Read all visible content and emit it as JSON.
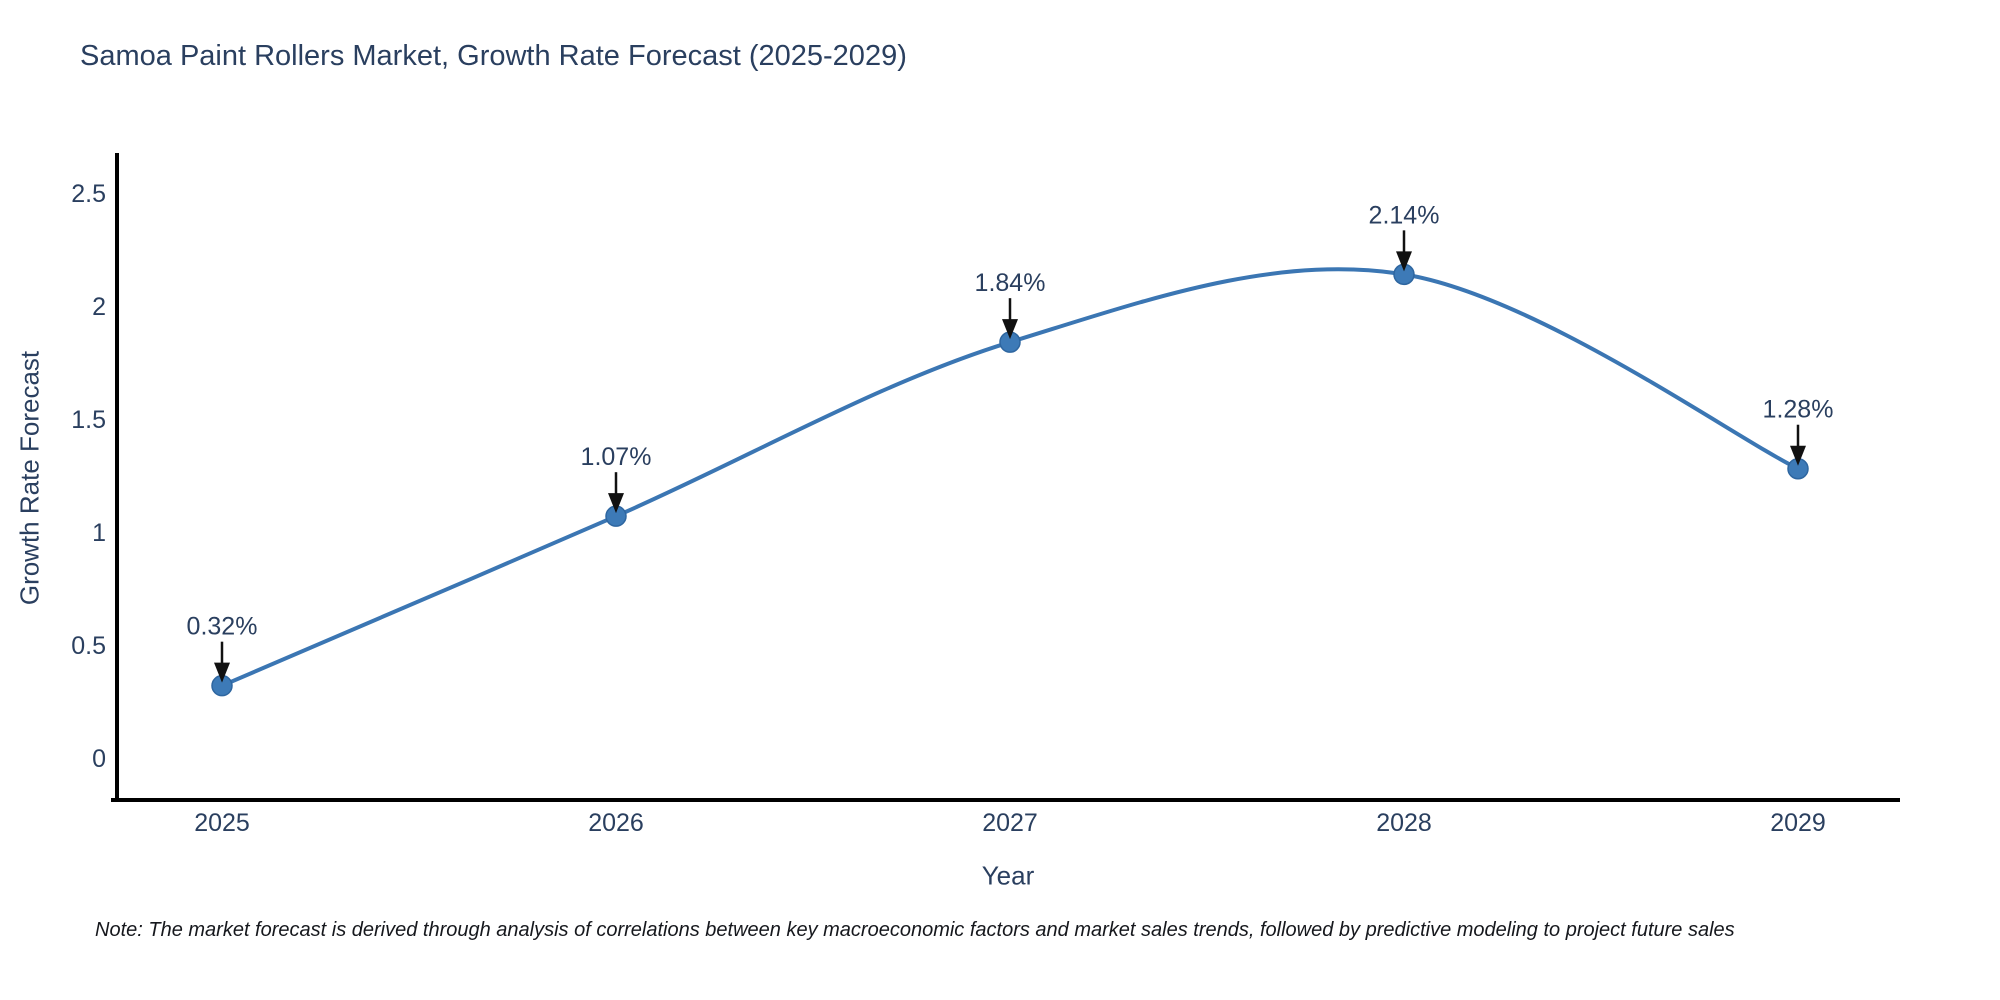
{
  "title": "Samoa Paint Rollers Market, Growth Rate Forecast (2025-2029)",
  "note": "Note: The market forecast is derived through analysis of correlations between key macroeconomic factors and market sales trends, followed by predictive modeling to project future sales",
  "chart_data": {
    "type": "line",
    "line_shape": "spline",
    "title": "Samoa Paint Rollers Market, Growth Rate Forecast (2025-2029)",
    "xlabel": "Year",
    "ylabel": "Growth Rate Forecast",
    "categories": [
      "2025",
      "2026",
      "2027",
      "2028",
      "2029"
    ],
    "values": [
      0.32,
      1.07,
      1.84,
      2.14,
      1.28
    ],
    "point_labels": [
      "0.32%",
      "1.07%",
      "1.84%",
      "2.14%",
      "1.28%"
    ],
    "ytick_labels": [
      "0",
      "0.5",
      "1",
      "1.5",
      "2",
      "2.5"
    ],
    "ytick_values": [
      0,
      0.5,
      1,
      1.5,
      2,
      2.5
    ],
    "ylim": [
      -0.19,
      2.67
    ],
    "grid": false,
    "legend": "none",
    "annotation_style": "black-down-arrow",
    "colors": {
      "line": "#3b76b3",
      "marker_fill": "#3d7ab7",
      "marker_edge": "#2e66a0",
      "axis": "#000000",
      "tick_text": "#2a3f5f",
      "annotation_text": "#2a3f5f",
      "arrow": "#111111",
      "background": "#ffffff"
    }
  }
}
